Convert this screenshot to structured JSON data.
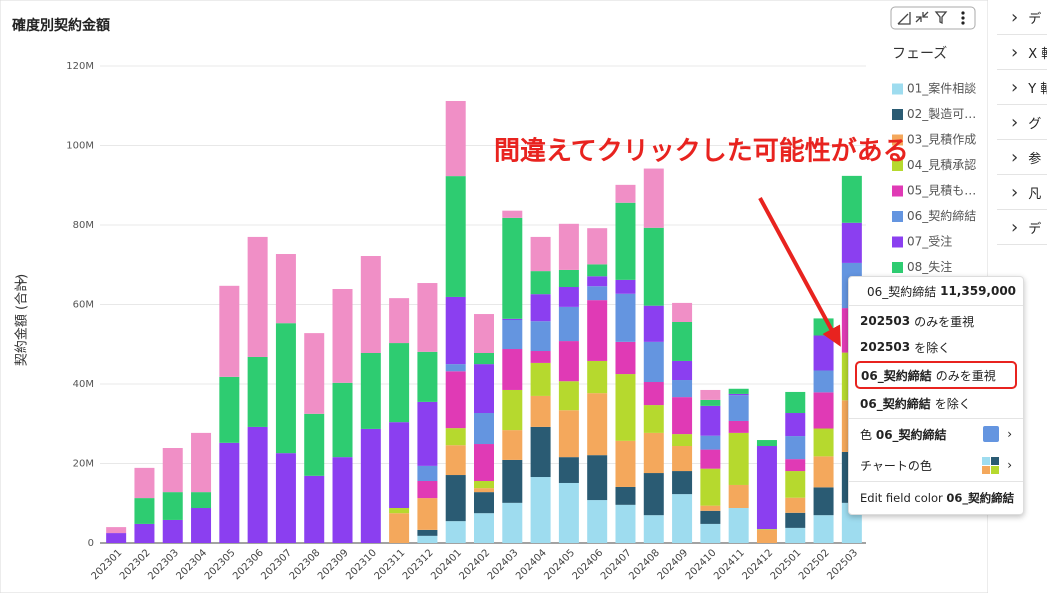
{
  "chart_data": {
    "type": "stacked_bar",
    "title": "確度別契約金額",
    "y_label": "契約金額 (合計)",
    "legend_title": "フェーズ",
    "annotation": "間違えてクリックした可能性がある",
    "categories": [
      "202301",
      "202302",
      "202303",
      "202304",
      "202305",
      "202306",
      "202307",
      "202308",
      "202309",
      "202310",
      "202311",
      "202312",
      "202401",
      "202402",
      "202403",
      "202404",
      "202405",
      "202406",
      "202407",
      "202408",
      "202409",
      "202410",
      "202411",
      "202412",
      "202501",
      "202502",
      "202503"
    ],
    "ylim": [
      0,
      120000000
    ],
    "yticks": [
      {
        "value": 0,
        "label": "0"
      },
      {
        "value": 20000000,
        "label": "20M"
      },
      {
        "value": 40000000,
        "label": "40M"
      },
      {
        "value": 60000000,
        "label": "60M"
      },
      {
        "value": 80000000,
        "label": "80M"
      },
      {
        "value": 100000000,
        "label": "100M"
      },
      {
        "value": 120000000,
        "label": "120M"
      }
    ],
    "grid": true,
    "series": [
      {
        "name": "01_案件相談",
        "color": "#9edcef",
        "values": [
          0,
          0,
          0,
          0,
          0,
          0,
          0,
          0,
          0,
          0,
          0,
          1800000,
          5500000,
          7500000,
          10100000,
          16600000,
          15100000,
          10800000,
          9600000,
          7000000,
          12300000,
          4800000,
          8800000,
          0,
          3800000,
          7000000,
          10100000
        ]
      },
      {
        "name": "02_製造可…",
        "color": "#2a5b73",
        "values": [
          0,
          0,
          0,
          0,
          0,
          0,
          0,
          0,
          0,
          0,
          0,
          1500000,
          11600000,
          5300000,
          10800000,
          12600000,
          6500000,
          11300000,
          4500000,
          10600000,
          5800000,
          3300000,
          0,
          0,
          3800000,
          7000000,
          12800000
        ]
      },
      {
        "name": "03_見積作成",
        "color": "#f4a85c",
        "values": [
          0,
          0,
          0,
          0,
          0,
          0,
          0,
          0,
          0,
          0,
          7500000,
          8000000,
          7500000,
          1000000,
          7500000,
          7800000,
          11800000,
          15600000,
          11600000,
          10100000,
          6300000,
          1300000,
          5800000,
          3300000,
          3800000,
          7800000,
          13000000
        ]
      },
      {
        "name": "04_見積承認",
        "color": "#b6d92e",
        "values": [
          0,
          0,
          0,
          0,
          0,
          0,
          0,
          0,
          0,
          0,
          1300000,
          0,
          4300000,
          1800000,
          10100000,
          8300000,
          7300000,
          8100000,
          16800000,
          7000000,
          3000000,
          9300000,
          13100000,
          200000,
          6700000,
          7000000,
          12000000
        ]
      },
      {
        "name": "05_見積も…",
        "color": "#e03ab5",
        "values": [
          0,
          0,
          0,
          0,
          0,
          0,
          0,
          0,
          0,
          0,
          0,
          4300000,
          14300000,
          9300000,
          10300000,
          3000000,
          10100000,
          15300000,
          8100000,
          5800000,
          9300000,
          4800000,
          3000000,
          0,
          3000000,
          9100000,
          11200000
        ]
      },
      {
        "name": "06_契約締結",
        "color": "#6495e0",
        "values": [
          0,
          0,
          0,
          0,
          0,
          0,
          0,
          0,
          0,
          0,
          0,
          3800000,
          1800000,
          7800000,
          7300000,
          7500000,
          8600000,
          3500000,
          12100000,
          10100000,
          4300000,
          3500000,
          6500000,
          0,
          5800000,
          5500000,
          11359000
        ]
      },
      {
        "name": "07_受注",
        "color": "#8b3ff0",
        "values": [
          2500000,
          4800000,
          5800000,
          8800000,
          25200000,
          29200000,
          22600000,
          16900000,
          21600000,
          28700000,
          21600000,
          16100000,
          16900000,
          12300000,
          300000,
          6800000,
          5000000,
          2500000,
          3500000,
          9100000,
          4800000,
          7500000,
          300000,
          20900000,
          5800000,
          8800000,
          10100000
        ]
      },
      {
        "name": "08_失注",
        "color": "#2ecc71",
        "values": [
          0,
          6500000,
          7000000,
          4000000,
          16600000,
          17600000,
          32700000,
          15600000,
          18700000,
          19100000,
          19900000,
          12600000,
          30400000,
          2800000,
          25400000,
          5800000,
          4300000,
          3000000,
          19400000,
          19600000,
          9800000,
          1500000,
          1300000,
          1500000,
          5300000,
          4300000,
          11800000
        ]
      },
      {
        "name": null,
        "color": "#f08fc6",
        "values": [
          1500000,
          7600000,
          11100000,
          14900000,
          22900000,
          30200000,
          17400000,
          20300000,
          23600000,
          24400000,
          11300000,
          17300000,
          18900000,
          9800000,
          1800000,
          8600000,
          11600000,
          9100000,
          4500000,
          14900000,
          4800000,
          2500000,
          0,
          0,
          0,
          0,
          0
        ]
      }
    ]
  },
  "tooltip": {
    "name": "06_契約締結",
    "value": "11,359,000",
    "actions": [
      {
        "key": "202503",
        "text": "のみを重視"
      },
      {
        "key": "202503",
        "text": "を除く"
      },
      {
        "key": "06_契約締結",
        "text": "のみを重視"
      },
      {
        "key": "06_契約締結",
        "text": "を除く"
      }
    ],
    "color_label": "色",
    "color_key": "06_契約締結",
    "chart_color": "チャートの色",
    "edit_label": "Edit field color",
    "edit_key": "06_契約締結"
  },
  "right_panel": [
    "デ",
    "X 軸",
    "Y 軸",
    "グ",
    "参",
    "凡",
    "デ"
  ]
}
